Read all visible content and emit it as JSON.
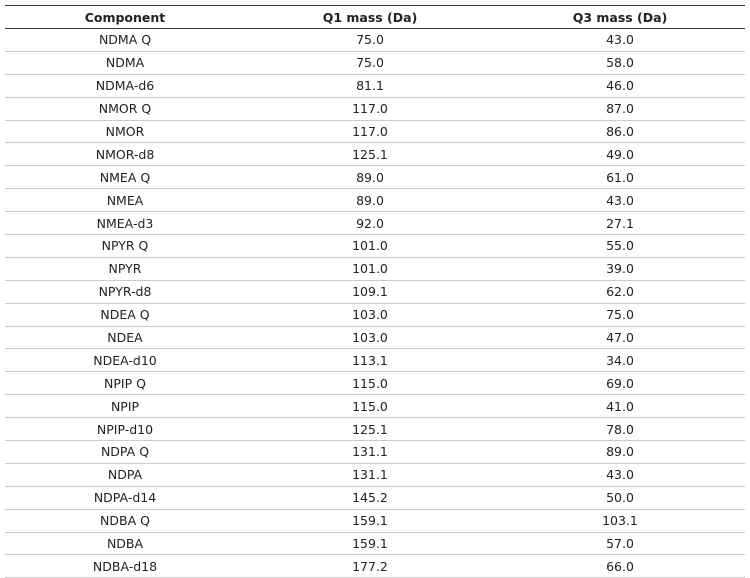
{
  "table": {
    "header": [
      "Component",
      "Q1 mass (Da)",
      "Q3 mass (Da)"
    ],
    "rows": [
      [
        "NDMA Q",
        "75.0",
        "43.0"
      ],
      [
        "NDMA",
        "75.0",
        "58.0"
      ],
      [
        "NDMA-d6",
        "81.1",
        "46.0"
      ],
      [
        "NMOR Q",
        "117.0",
        "87.0"
      ],
      [
        "NMOR",
        "117.0",
        "86.0"
      ],
      [
        "NMOR-d8",
        "125.1",
        "49.0"
      ],
      [
        "NMEA Q",
        "89.0",
        "61.0"
      ],
      [
        "NMEA",
        "89.0",
        "43.0"
      ],
      [
        "NMEA-d3",
        "92.0",
        "27.1"
      ],
      [
        "NPYR Q",
        "101.0",
        "55.0"
      ],
      [
        "NPYR",
        "101.0",
        "39.0"
      ],
      [
        "NPYR-d8",
        "109.1",
        "62.0"
      ],
      [
        "NDEA Q",
        "103.0",
        "75.0"
      ],
      [
        "NDEA",
        "103.0",
        "47.0"
      ],
      [
        "NDEA-d10",
        "113.1",
        "34.0"
      ],
      [
        "NPIP Q",
        "115.0",
        "69.0"
      ],
      [
        "NPIP",
        "115.0",
        "41.0"
      ],
      [
        "NPIP-d10",
        "125.1",
        "78.0"
      ],
      [
        "NDPA Q",
        "131.1",
        "89.0"
      ],
      [
        "NDPA",
        "131.1",
        "43.0"
      ],
      [
        "NDPA-d14",
        "145.2",
        "50.0"
      ],
      [
        "NDBA Q",
        "159.1",
        "103.1"
      ],
      [
        "NDBA",
        "159.1",
        "57.0"
      ],
      [
        "NDBA-d18",
        "177.2",
        "66.0"
      ]
    ]
  }
}
